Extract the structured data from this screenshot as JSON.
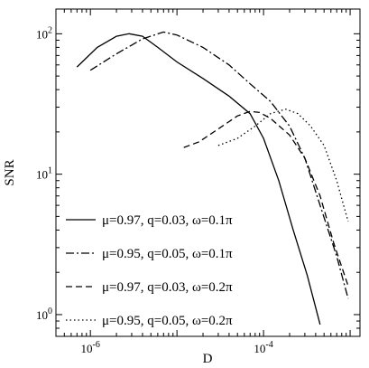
{
  "chart_data": {
    "type": "line",
    "xlabel": "D",
    "ylabel": "SNR",
    "xscale": "log",
    "yscale": "log",
    "xlim": [
      4e-07,
      0.0013
    ],
    "ylim": [
      0.7,
      150
    ],
    "grid": false,
    "legend_position": "bottom-left",
    "x_tick_labels": [
      {
        "base": "10",
        "exp": "-6",
        "value": 1e-06
      },
      {
        "base": "10",
        "exp": "-4",
        "value": 0.0001
      }
    ],
    "y_tick_labels": [
      {
        "base": "10",
        "exp": "0",
        "value": 1
      },
      {
        "base": "10",
        "exp": "1",
        "value": 10
      },
      {
        "base": "10",
        "exp": "2",
        "value": 100
      }
    ],
    "series": [
      {
        "name": "μ=0.97, q=0.03, ω=0.1π",
        "dash": "solid",
        "points": [
          [
            7e-07,
            58
          ],
          [
            1.2e-06,
            80
          ],
          [
            2e-06,
            96
          ],
          [
            2.8e-06,
            100
          ],
          [
            4e-06,
            96
          ],
          [
            6e-06,
            80
          ],
          [
            1e-05,
            63
          ],
          [
            2e-05,
            48
          ],
          [
            4e-05,
            36
          ],
          [
            7e-05,
            27
          ],
          [
            0.0001,
            18
          ],
          [
            0.00015,
            9
          ],
          [
            0.00022,
            4
          ],
          [
            0.00032,
            1.9
          ],
          [
            0.00045,
            0.85
          ]
        ]
      },
      {
        "name": "μ=0.95, q=0.05, ω=0.1π",
        "dash": "dashdot",
        "points": [
          [
            1e-06,
            55
          ],
          [
            2e-06,
            72
          ],
          [
            4e-06,
            92
          ],
          [
            7e-06,
            103
          ],
          [
            1e-05,
            98
          ],
          [
            2e-05,
            80
          ],
          [
            4e-05,
            60
          ],
          [
            7e-05,
            44
          ],
          [
            0.00012,
            33
          ],
          [
            0.0002,
            22
          ],
          [
            0.0003,
            13
          ],
          [
            0.00045,
            6
          ],
          [
            0.0007,
            2.6
          ],
          [
            0.00095,
            1.3
          ]
        ]
      },
      {
        "name": "μ=0.97, q=0.03, ω=0.2π",
        "dash": "dashed",
        "points": [
          [
            1.2e-05,
            15.5
          ],
          [
            1.8e-05,
            17
          ],
          [
            3e-05,
            21
          ],
          [
            5e-05,
            26
          ],
          [
            7e-05,
            28
          ],
          [
            9e-05,
            27.5
          ],
          [
            0.00012,
            25
          ],
          [
            0.0002,
            19
          ],
          [
            0.0003,
            13
          ],
          [
            0.00045,
            7
          ],
          [
            0.00065,
            3.2
          ],
          [
            0.00095,
            1.6
          ]
        ]
      },
      {
        "name": "μ=0.95, q=0.05, ω=0.2π",
        "dash": "dotted",
        "points": [
          [
            3e-05,
            16
          ],
          [
            5e-05,
            18
          ],
          [
            8e-05,
            22
          ],
          [
            0.00012,
            27
          ],
          [
            0.00018,
            29
          ],
          [
            0.00025,
            27
          ],
          [
            0.00035,
            22
          ],
          [
            0.0005,
            16
          ],
          [
            0.0007,
            9
          ],
          [
            0.00095,
            4.6
          ]
        ]
      }
    ]
  }
}
